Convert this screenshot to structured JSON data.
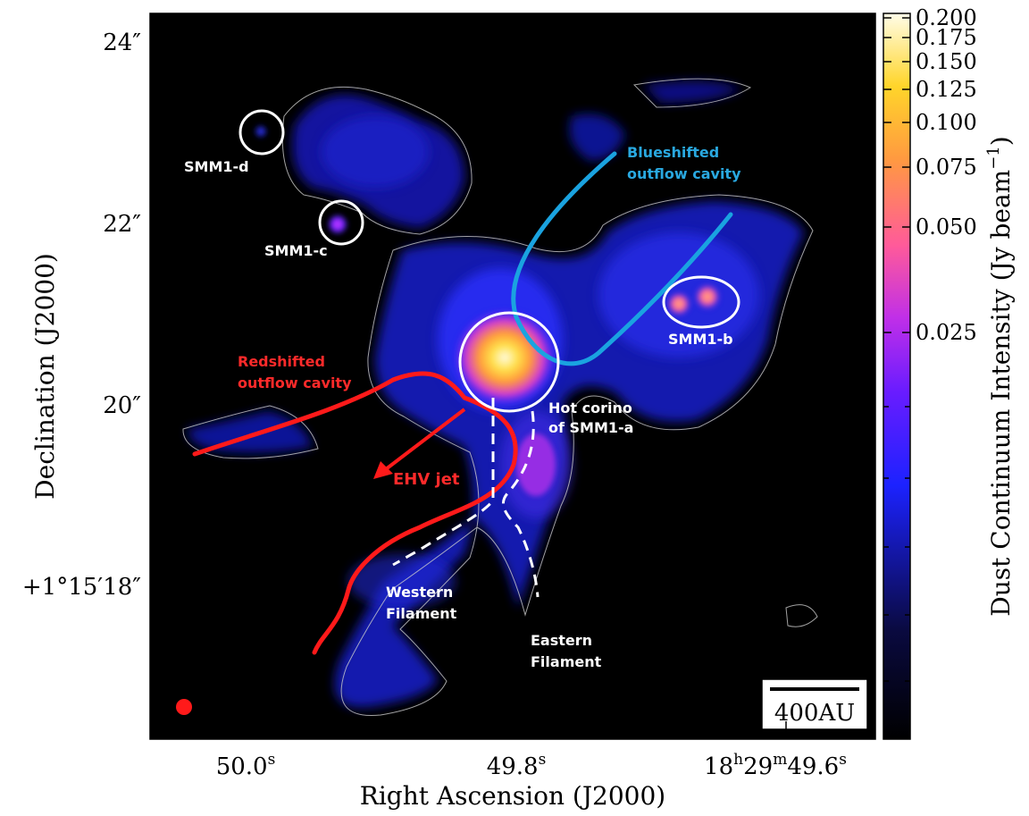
{
  "axes": {
    "xlabel": "Right Ascension (J2000)",
    "ylabel": "Declination (J2000)",
    "x_ticks": [
      {
        "label": "50.0",
        "sup": "s"
      },
      {
        "label": "49.8",
        "sup": "s"
      },
      {
        "label": "18",
        "sup": "h",
        "label2": "29",
        "sup2": "m",
        "label3": "49.6",
        "sup3": "s"
      }
    ],
    "y_ticks": [
      "24″",
      "22″",
      "20″",
      "+1°15′18″"
    ]
  },
  "colorbar": {
    "label": "Dust Continuum Intensity (Jy beam",
    "label_sup": "−1",
    "label_end": ")",
    "ticks": [
      "0.200",
      "0.175",
      "0.150",
      "0.125",
      "0.100",
      "0.075",
      "0.050",
      "0.025"
    ]
  },
  "scalebar": {
    "label": "400AU"
  },
  "annotations": {
    "smm1_d": "SMM1-d",
    "smm1_c": "SMM1-c",
    "smm1_b": "SMM1-b",
    "hot_corino_1": "Hot corino",
    "hot_corino_2": "of SMM1-a",
    "blue_1": "Blueshifted",
    "blue_2": "outflow cavity",
    "red_1": "Redshifted",
    "red_2": "outflow cavity",
    "ehv_jet": "EHV jet",
    "western_1": "Western",
    "western_2": "Filament",
    "eastern_1": "Eastern",
    "eastern_2": "Filament"
  },
  "colors": {
    "red": "#ff1a1a",
    "blue": "#1aa3e0",
    "white": "#ffffff",
    "blue_text": "#29a8e0",
    "red_text": "#ff2a2a"
  }
}
